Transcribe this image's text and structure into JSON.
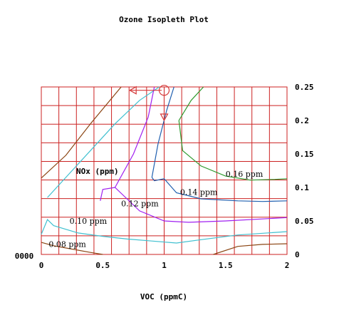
{
  "chart_data": {
    "type": "line",
    "title": "Ozone Isopleth Plot",
    "xlabel": "VOC (ppmC)",
    "ylabel": "NOx (ppm)",
    "left_axis_label": "0000",
    "xlim": [
      0,
      2
    ],
    "ylim": [
      0,
      0.25
    ],
    "x_ticks": [
      "0",
      "0.5",
      "1",
      "1.5",
      "2"
    ],
    "y_ticks": [
      "0",
      "0.05",
      "0.1",
      "0.15",
      "0.2",
      "0.25"
    ],
    "grid": true,
    "grid_color": "#cc2222",
    "series": [
      {
        "name": "0.08 ppm",
        "color": "#8b4513",
        "label_pos": [
          0.06,
          0.011
        ],
        "x": [
          0.0,
          0.1,
          0.25,
          0.4,
          0.5
        ],
        "y": [
          0.018,
          0.013,
          0.008,
          0.003,
          0.0
        ]
      },
      {
        "name": "",
        "color": "#8b4513",
        "x": [
          0.0,
          0.2,
          0.4,
          0.65
        ],
        "y": [
          0.114,
          0.148,
          0.195,
          0.25
        ]
      },
      {
        "name": "",
        "color": "#8b4513",
        "x": [
          1.4,
          1.6,
          1.8,
          2.0
        ],
        "y": [
          0.0,
          0.012,
          0.015,
          0.016
        ]
      },
      {
        "name": "0.10 ppm",
        "color": "#40c0d0",
        "label_pos": [
          0.23,
          0.046
        ],
        "x": [
          0.0,
          0.05,
          0.1,
          0.3,
          0.5,
          0.7,
          0.9,
          1.1,
          1.3,
          1.6,
          2.0
        ],
        "y": [
          0.03,
          0.052,
          0.043,
          0.032,
          0.027,
          0.023,
          0.02,
          0.017,
          0.022,
          0.029,
          0.034
        ]
      },
      {
        "name": "",
        "color": "#40c0d0",
        "x": [
          0.05,
          0.2,
          0.4,
          0.6,
          0.8,
          0.96
        ],
        "y": [
          0.085,
          0.115,
          0.155,
          0.195,
          0.23,
          0.25
        ]
      },
      {
        "name": "0.12 ppm",
        "color": "#a020f0",
        "label_pos": [
          0.65,
          0.072
        ],
        "x": [
          0.48,
          0.5,
          0.6,
          0.8,
          1.0,
          1.2,
          1.5,
          1.8,
          2.0
        ],
        "y": [
          0.08,
          0.097,
          0.1,
          0.065,
          0.05,
          0.048,
          0.05,
          0.053,
          0.055
        ]
      },
      {
        "name": "",
        "color": "#a020f0",
        "x": [
          0.6,
          0.75,
          0.87,
          0.92
        ],
        "y": [
          0.1,
          0.15,
          0.205,
          0.25
        ]
      },
      {
        "name": "0.14 ppm",
        "color": "#2060b0",
        "label_pos": [
          1.13,
          0.089
        ],
        "x": [
          0.9,
          0.92,
          1.0,
          1.1,
          1.3,
          1.6,
          1.8,
          2.0
        ],
        "y": [
          0.115,
          0.11,
          0.113,
          0.092,
          0.083,
          0.08,
          0.079,
          0.08
        ]
      },
      {
        "name": "",
        "color": "#2060b0",
        "x": [
          0.9,
          0.95,
          1.02,
          1.08
        ],
        "y": [
          0.115,
          0.165,
          0.215,
          0.25
        ]
      },
      {
        "name": "0.16 ppm",
        "color": "#2e9a2e",
        "label_pos": [
          1.5,
          0.116
        ],
        "x": [
          1.12,
          1.15,
          1.3,
          1.5,
          1.7,
          1.9,
          2.0
        ],
        "y": [
          0.2,
          0.155,
          0.132,
          0.117,
          0.111,
          0.112,
          0.113
        ]
      },
      {
        "name": "",
        "color": "#2e9a2e",
        "x": [
          1.12,
          1.22,
          1.32
        ],
        "y": [
          0.2,
          0.23,
          0.25
        ]
      }
    ],
    "annotations": [
      {
        "type": "circle",
        "x": 1.0,
        "y": 0.245,
        "color": "#d43a3a"
      },
      {
        "type": "arrow",
        "from": [
          0.98,
          0.245
        ],
        "to": [
          0.72,
          0.245
        ],
        "color": "#d43a3a"
      },
      {
        "type": "arrow",
        "from": [
          1.0,
          0.24
        ],
        "to": [
          1.0,
          0.2
        ],
        "color": "#d43a3a"
      }
    ]
  }
}
